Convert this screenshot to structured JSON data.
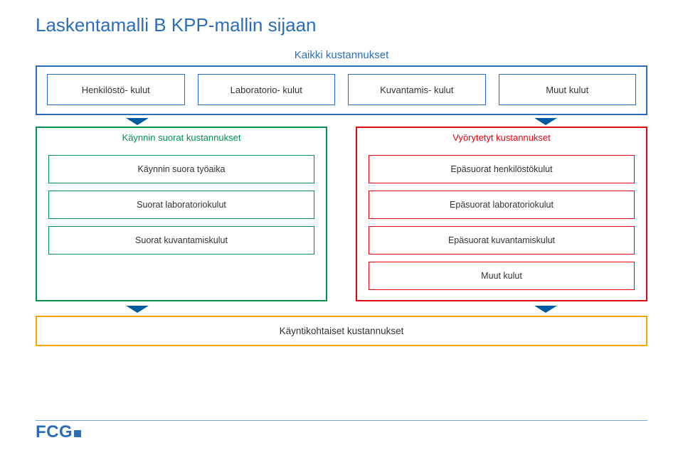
{
  "title": "Laskentamalli B KPP-mallin sijaan",
  "top": {
    "label": "Kaikki kustannukset",
    "border_color": "#2a6ebb",
    "boxes": [
      {
        "label": "Henkilöstö-\nkulut"
      },
      {
        "label": "Laboratorio-\nkulut"
      },
      {
        "label": "Kuvantamis-\nkulut"
      },
      {
        "label": "Muut kulut"
      }
    ]
  },
  "columns": {
    "left": {
      "header": "Käynnin suorat kustannukset",
      "border_color": "#009150",
      "boxes": [
        "Käynnin suora työaika",
        "Suorat laboratoriokulut",
        "Suorat kuvantamiskulut"
      ]
    },
    "right": {
      "header": "Vyörytetyt kustannukset",
      "border_color": "#e30613",
      "boxes": [
        "Epäsuorat henkilöstökulut",
        "Epäsuorat laboratoriokulut",
        "Epäsuorat kuvantamiskulut",
        "Muut kulut"
      ]
    }
  },
  "bottom": {
    "label": "Käyntikohtaiset kustannukset",
    "border_color": "#f7a600"
  },
  "logo": "FCG"
}
